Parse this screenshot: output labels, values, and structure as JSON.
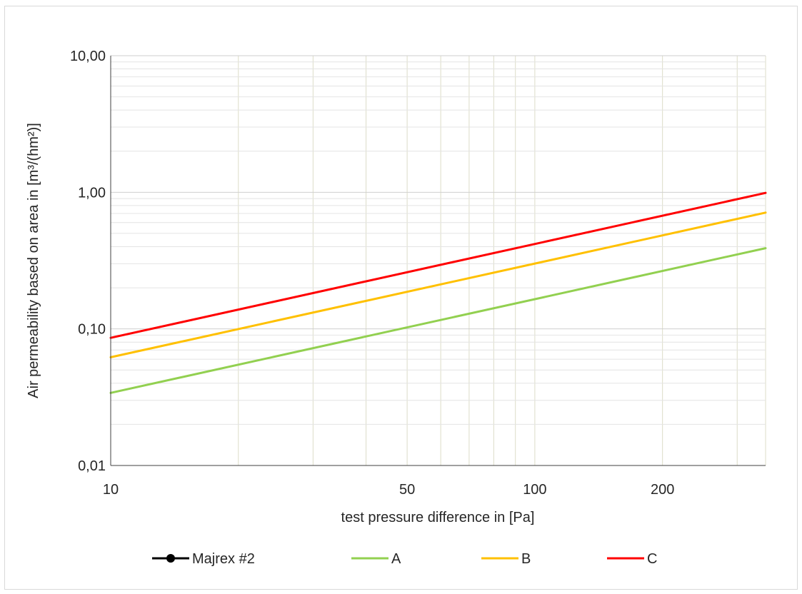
{
  "chart_data": {
    "type": "line",
    "xlabel": "test pressure difference in [Pa]",
    "ylabel": "Air permeability based on area in [m³/(hm²)]",
    "x_scale": "log",
    "y_scale": "log",
    "xlim": [
      10,
      350
    ],
    "ylim": [
      0.01,
      10
    ],
    "x_ticks": [
      {
        "value": 10,
        "label": "10"
      },
      {
        "value": 50,
        "label": "50"
      },
      {
        "value": 100,
        "label": "100"
      },
      {
        "value": 200,
        "label": "200"
      }
    ],
    "y_ticks": [
      {
        "value": 0.01,
        "label": "0,01"
      },
      {
        "value": 0.1,
        "label": "0,10"
      },
      {
        "value": 1,
        "label": "1,00"
      },
      {
        "value": 10,
        "label": "10,00"
      }
    ],
    "grid": true,
    "legend_position": "bottom",
    "series": [
      {
        "name": "Majrex #2",
        "color": "#000000",
        "marker": "circle",
        "x": [],
        "y": []
      },
      {
        "name": "A",
        "color": "#92d050",
        "x": [
          10,
          350
        ],
        "y": [
          0.034,
          0.39
        ]
      },
      {
        "name": "B",
        "color": "#ffc000",
        "x": [
          10,
          350
        ],
        "y": [
          0.062,
          0.71
        ]
      },
      {
        "name": "C",
        "color": "#ff0000",
        "x": [
          10,
          350
        ],
        "y": [
          0.086,
          0.99
        ]
      }
    ]
  }
}
